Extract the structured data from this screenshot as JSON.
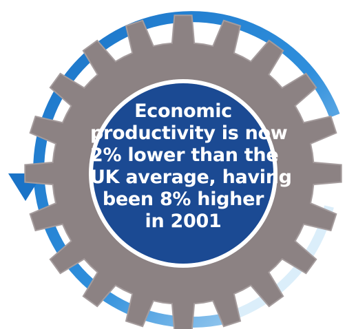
{
  "infographic": {
    "colors": {
      "gear": "#8c8283",
      "gear_edge": "#a59c9d",
      "circle_fill": "#1b4a93",
      "circle_ring": "#ffffff",
      "arrow_dark": "#1a73c7",
      "arrow_light": "#4aa8e8",
      "text": "#ffffff"
    },
    "icons": {
      "gear": "gear-icon",
      "arrow": "circular-arrow-icon"
    },
    "message": {
      "line1": "Economic",
      "line2": "productivity is now",
      "line3_bold": "2% lower",
      "line3_rest": " than the",
      "line4": "UK average, having",
      "line5_start": "been ",
      "line5_bold": "8% higher",
      "line6": "in 2001"
    }
  }
}
